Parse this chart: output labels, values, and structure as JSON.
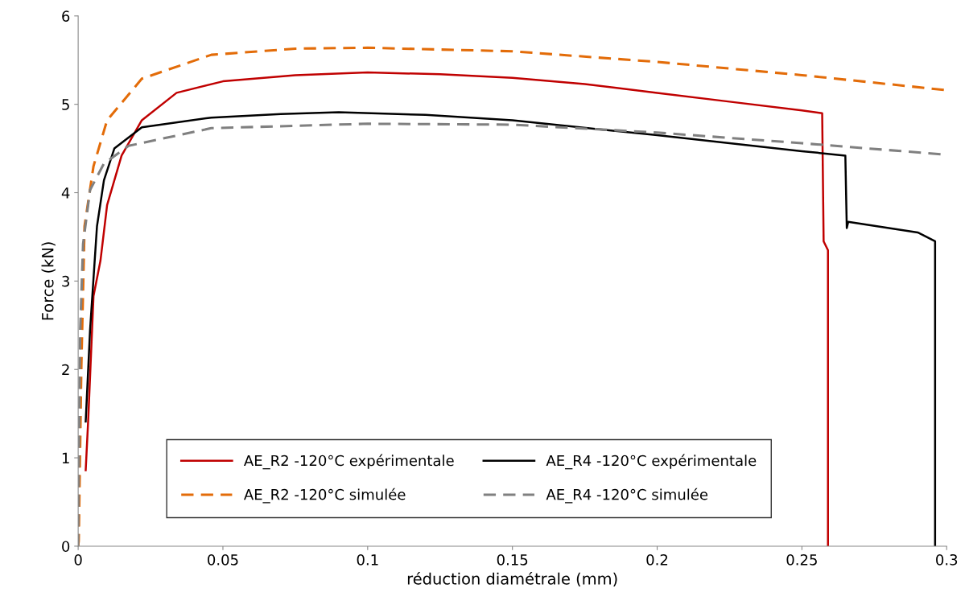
{
  "chart_data": {
    "type": "line",
    "xlabel": "réduction diamétrale (mm)",
    "ylabel": "Force (kN)",
    "xlim": [
      0,
      0.3
    ],
    "ylim": [
      0,
      6
    ],
    "xticks": [
      0,
      0.05,
      0.1,
      0.15,
      0.2,
      0.25,
      0.3
    ],
    "yticks": [
      0,
      1,
      2,
      3,
      4,
      5,
      6
    ],
    "grid": false,
    "legend": "bottom",
    "series": [
      {
        "name": "AE_R2 -120°C expérimentale",
        "color": "#c00000",
        "line_style": "solid",
        "x": [
          0.0026,
          0.0035,
          0.0053,
          0.0077,
          0.01,
          0.015,
          0.022,
          0.034,
          0.05,
          0.075,
          0.1,
          0.125,
          0.15,
          0.175,
          0.2,
          0.225,
          0.25,
          0.257,
          0.2575,
          0.259,
          0.259
        ],
        "values": [
          0.86,
          1.45,
          2.83,
          3.23,
          3.86,
          4.42,
          4.82,
          5.13,
          5.26,
          5.33,
          5.36,
          5.34,
          5.3,
          5.23,
          5.13,
          5.03,
          4.93,
          4.9,
          3.45,
          3.35,
          0
        ]
      },
      {
        "name": "AE_R2 -120°C simulée",
        "color": "#e36c09",
        "line_style": "dashed",
        "x": [
          0,
          0.0002,
          0.0011,
          0.0022,
          0.0053,
          0.01,
          0.022,
          0.046,
          0.075,
          0.1,
          0.15,
          0.2,
          0.25,
          0.3
        ],
        "values": [
          0,
          0.06,
          2.04,
          3.62,
          4.3,
          4.82,
          5.29,
          5.56,
          5.63,
          5.64,
          5.6,
          5.48,
          5.33,
          5.16
        ]
      },
      {
        "name": "AE_R4 -120°C expérimentale",
        "color": "#000000",
        "line_style": "solid",
        "x": [
          0.0026,
          0.0041,
          0.0065,
          0.0089,
          0.0125,
          0.022,
          0.046,
          0.07,
          0.09,
          0.12,
          0.15,
          0.2,
          0.25,
          0.265,
          0.2655,
          0.266,
          0.29,
          0.296,
          0.296
        ],
        "values": [
          1.41,
          2.44,
          3.62,
          4.14,
          4.5,
          4.74,
          4.85,
          4.89,
          4.91,
          4.88,
          4.82,
          4.65,
          4.47,
          4.42,
          3.6,
          3.67,
          3.55,
          3.45,
          0
        ]
      },
      {
        "name": "AE_R4 -120°C simulée",
        "color": "#808080",
        "line_style": "dashed",
        "x": [
          0,
          0.0002,
          0.0007,
          0.0017,
          0.0041,
          0.0089,
          0.0174,
          0.046,
          0.1,
          0.15,
          0.2,
          0.25,
          0.3
        ],
        "values": [
          0,
          0.86,
          2.44,
          3.42,
          4.03,
          4.33,
          4.53,
          4.73,
          4.78,
          4.77,
          4.68,
          4.56,
          4.43
        ]
      }
    ]
  }
}
